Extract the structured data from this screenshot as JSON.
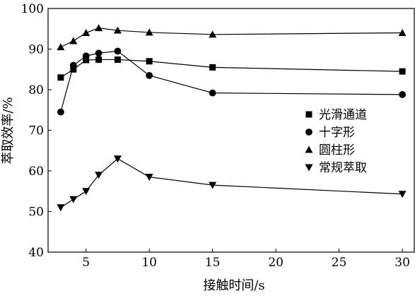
{
  "chart_data": {
    "type": "line",
    "xlabel": "接触时间/s",
    "ylabel": "萃取效率/%",
    "xlim": [
      2,
      31
    ],
    "ylim": [
      40,
      100
    ],
    "x_ticks": [
      "5",
      "10",
      "15",
      "20",
      "25",
      "30"
    ],
    "y_ticks": [
      "40",
      "50",
      "60",
      "70",
      "80",
      "90",
      "100"
    ],
    "grid": false,
    "legend_position": "center-right",
    "series": [
      {
        "name": "光滑通道",
        "marker": "square",
        "x": [
          3,
          4,
          5,
          6,
          7.5,
          10,
          15,
          30
        ],
        "y": [
          83,
          85,
          87.3,
          87.4,
          87.4,
          87,
          85.5,
          84.5
        ]
      },
      {
        "name": "十字形",
        "marker": "circle",
        "x": [
          3,
          4,
          5,
          6,
          7.5,
          10,
          15,
          30
        ],
        "y": [
          74.5,
          86,
          88.3,
          89,
          89.5,
          83.5,
          79.2,
          78.8
        ]
      },
      {
        "name": "圆柱形",
        "marker": "triangle-up",
        "x": [
          3,
          4,
          5,
          6,
          7.5,
          10,
          15,
          30
        ],
        "y": [
          90.5,
          92,
          94,
          95.2,
          94.6,
          94.1,
          93.6,
          94
        ]
      },
      {
        "name": "常规萃取",
        "marker": "triangle-down",
        "x": [
          3,
          4,
          5,
          6,
          7.5,
          10,
          15,
          30
        ],
        "y": [
          51,
          53,
          55,
          59,
          63,
          58.5,
          56.5,
          54.3
        ]
      }
    ]
  }
}
